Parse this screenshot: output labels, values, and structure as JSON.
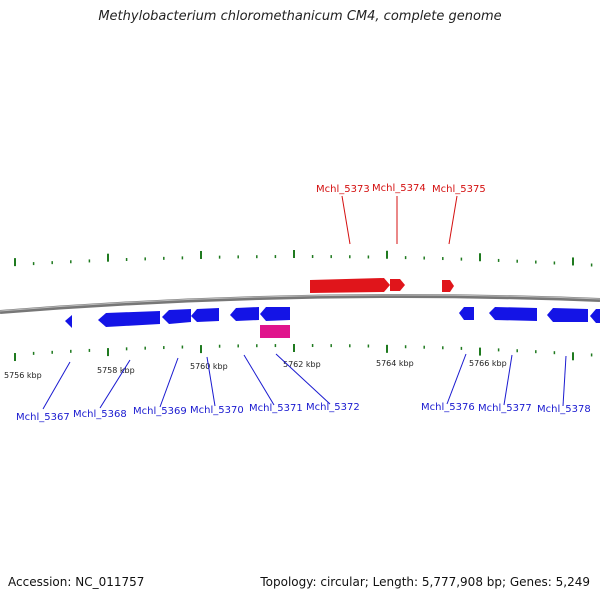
{
  "title": "Methylobacterium chloromethanicum CM4, complete genome",
  "footer": {
    "accession": "Accession: NC_011757",
    "topology": "Topology: circular; Length: 5,777,908 bp; Genes: 5,249"
  },
  "colors": {
    "forward": "#e0151b",
    "reverse": "#1414e6",
    "rna": "#e0148c",
    "tick": "#1f7a1f",
    "backbone": "#777777",
    "forward_label": "#d41010",
    "reverse_label": "#1a1ad0"
  },
  "scale_labels": [
    "5756 kbp",
    "5758 kbp",
    "5760 kbp",
    "5762 kbp",
    "5764 kbp",
    "5766 kbp"
  ],
  "forward_gene_labels": [
    "Mchl_5373",
    "Mchl_5374",
    "Mchl_5375"
  ],
  "reverse_gene_labels": [
    "Mchl_5367",
    "Mchl_5368",
    "Mchl_5369",
    "Mchl_5370",
    "Mchl_5371",
    "Mchl_5372",
    "Mchl_5376",
    "Mchl_5377",
    "Mchl_5378"
  ]
}
